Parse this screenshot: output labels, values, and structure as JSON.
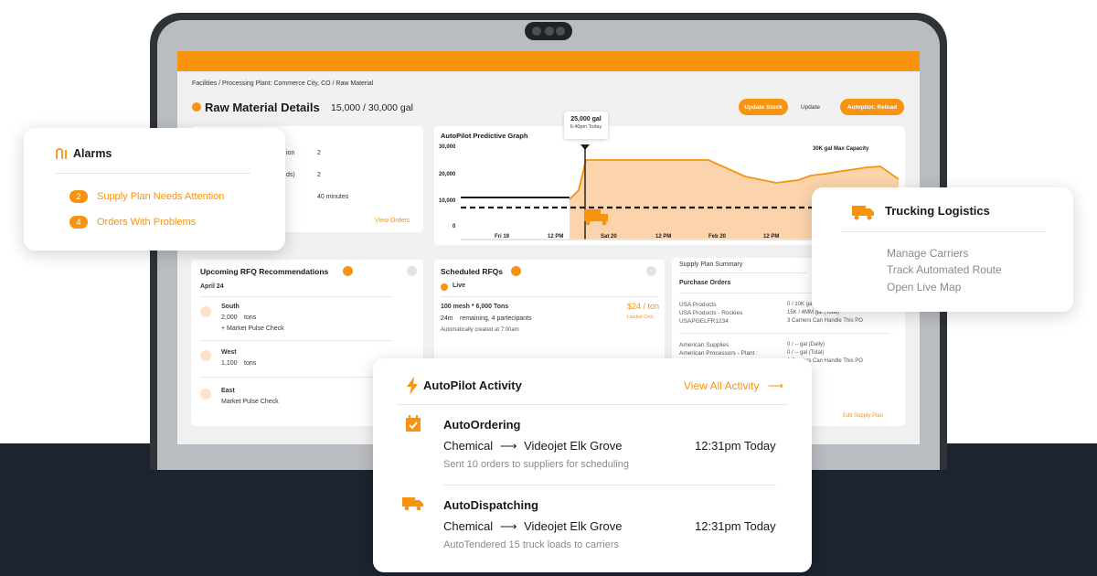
{
  "screen": {
    "breadcrumb": "Facilities / Processing Plant: Commerce City, CO / Raw Material",
    "title": "Raw Material Details",
    "amount": "15,000 / 30,000 gal",
    "buttons": {
      "update_stock": "Update Stock",
      "update": "Update",
      "autopilot": "Autopilot: Reload"
    },
    "left_panel": {
      "values": [
        "2",
        "2",
        "40 minutes"
      ],
      "label_fragments": [
        "ion",
        "ds)"
      ],
      "view_orders": "View Orders"
    },
    "graph": {
      "title": "AutoPilot Predictive Graph",
      "capacity_label": "30K gal Max Capacity",
      "tooltip_value": "25,000 gal",
      "tooltip_time": "6:40pm Today",
      "y_ticks": [
        "30,000",
        "20,000",
        "10,000",
        "0"
      ],
      "x_ticks": [
        "Fri 19",
        "12 PM",
        "Sat 20",
        "12 PM",
        "Feb 20",
        "12 PM"
      ]
    },
    "rfq": {
      "title": "Upcoming RFQ Recommendations",
      "date": "April 24",
      "items": [
        {
          "region": "South",
          "amount": "2,000",
          "unit": "tons",
          "note": "+ Market Pulse Check"
        },
        {
          "region": "West",
          "amount": "1,100",
          "unit": "tons",
          "note": ""
        },
        {
          "region": "East",
          "amount": "",
          "unit": "",
          "note": "Market Pulse Check"
        }
      ]
    },
    "scheduled": {
      "title": "Scheduled RFQs",
      "status": "Live",
      "item": "100 mesh * 6,000 Tons",
      "price": "$24 / ton",
      "price_note": "Landed Cost",
      "remaining_time": "24m",
      "remaining_text": "remaining, 4 partecipants",
      "created": "Automatically created at 7:00am"
    },
    "supply_plan": {
      "title": "Supply Plan Summary",
      "subtitle": "Purchase Orders",
      "rows": [
        {
          "name": "USA Products",
          "value": "0 / 10K ga"
        },
        {
          "name": "USA Products - Rockies",
          "value": "15K / 4MM gal (Total)"
        },
        {
          "name": "USAPGELFR1234",
          "value": "3 Carriers Can Handle This PO"
        },
        {
          "name": "American Supplies",
          "value": "0 / -- gal (Daily)"
        },
        {
          "name": "American Processors - Plant :",
          "value": "0 / -- gal (Total)"
        },
        {
          "name": "",
          "value": "3 Carriers Can Handle This PO"
        }
      ],
      "edit_link": "Edit Supply Plan"
    }
  },
  "alarms": {
    "title": "Alarms",
    "items": [
      {
        "count": "2",
        "label": "Supply Plan Needs Attention"
      },
      {
        "count": "4",
        "label": "Orders With Problems"
      }
    ]
  },
  "trucking": {
    "title": "Trucking Logistics",
    "items": [
      "Manage Carriers",
      "Track Automated Route",
      "Open Live Map"
    ]
  },
  "activity": {
    "title": "AutoPilot Activity",
    "view_all": "View All Activity",
    "items": [
      {
        "name": "AutoOrdering",
        "from": "Chemical",
        "to": "Videojet Elk Grove",
        "time": "12:31pm Today",
        "desc": "Sent 10 orders to suppliers for scheduling"
      },
      {
        "name": "AutoDispatching",
        "from": "Chemical",
        "to": "Videojet Elk Grove",
        "time": "12:31pm Today",
        "desc": "AutoTendered 15 truck loads to carriers"
      }
    ]
  },
  "colors": {
    "accent": "#f7930f",
    "dark": "#1c2431",
    "bezel": "#2f3338"
  }
}
